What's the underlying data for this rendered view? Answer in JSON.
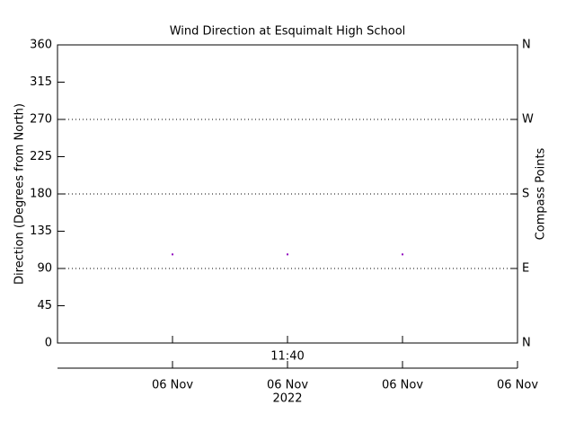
{
  "chart_data": {
    "type": "scatter",
    "title": "Wind Direction at Esquimalt High School",
    "y_label": "Direction (Degrees from North)",
    "y2_label": "Compass Points",
    "time_label": "11:40",
    "year_label": "2022",
    "ylim": [
      0,
      360
    ],
    "yticks": [
      0,
      45,
      90,
      135,
      180,
      225,
      270,
      315,
      360
    ],
    "y2lim": [
      0,
      360
    ],
    "y2ticks": [
      {
        "value": 0,
        "label": "N"
      },
      {
        "value": 90,
        "label": "E"
      },
      {
        "value": 180,
        "label": "S"
      },
      {
        "value": 270,
        "label": "W"
      },
      {
        "value": 360,
        "label": "N"
      }
    ],
    "grid_values": [
      90,
      180,
      270
    ],
    "xlim": [
      0,
      4
    ],
    "xticks": [
      {
        "value": 1,
        "label": "06 Nov"
      },
      {
        "value": 2,
        "label": "06 Nov"
      },
      {
        "value": 3,
        "label": "06 Nov"
      },
      {
        "value": 4,
        "label": "06 Nov"
      }
    ],
    "series": [
      {
        "color": "#9000c0",
        "x": [
          1,
          2,
          3
        ],
        "values": [
          107,
          107,
          107
        ]
      }
    ]
  }
}
